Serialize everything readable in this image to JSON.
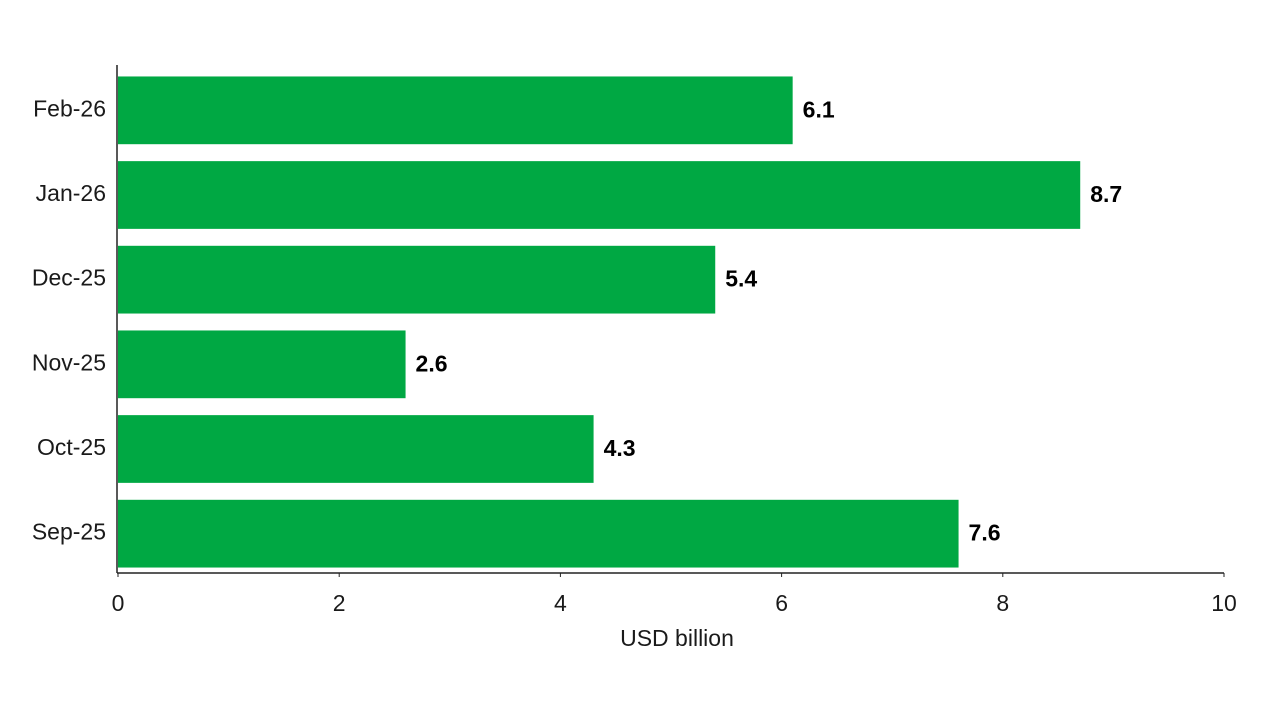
{
  "chart_data": {
    "type": "hbar",
    "categories": [
      "Feb-26",
      "Jan-26",
      "Dec-25",
      "Nov-25",
      "Oct-25",
      "Sep-25"
    ],
    "values": [
      6.1,
      8.7,
      5.4,
      2.6,
      4.3,
      7.6
    ],
    "color": "#00a843",
    "xlim": [
      0,
      10
    ],
    "xticks": [
      0,
      2,
      4,
      6,
      8,
      10
    ],
    "x_label": "USD billion",
    "grid": false
  }
}
